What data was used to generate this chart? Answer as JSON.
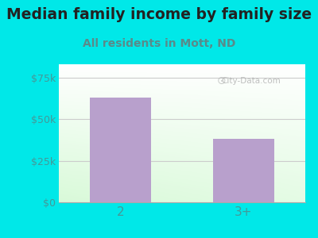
{
  "title": "Median family income by family size",
  "subtitle": "All residents in Mott, ND",
  "categories": [
    "2",
    "3+"
  ],
  "values": [
    63000,
    38000
  ],
  "bar_color": "#b8a0cc",
  "background_color": "#00e8e8",
  "yticks": [
    0,
    25000,
    50000,
    75000
  ],
  "ytick_labels": [
    "$0",
    "$25k",
    "$50k",
    "$75k"
  ],
  "ylim": [
    0,
    83000
  ],
  "title_fontsize": 13.5,
  "subtitle_fontsize": 10,
  "title_color": "#222222",
  "subtitle_color": "#5a8a8a",
  "tick_color": "#449999",
  "watermark": "City-Data.com",
  "grid_color": "#cccccc",
  "bar_width": 0.5
}
